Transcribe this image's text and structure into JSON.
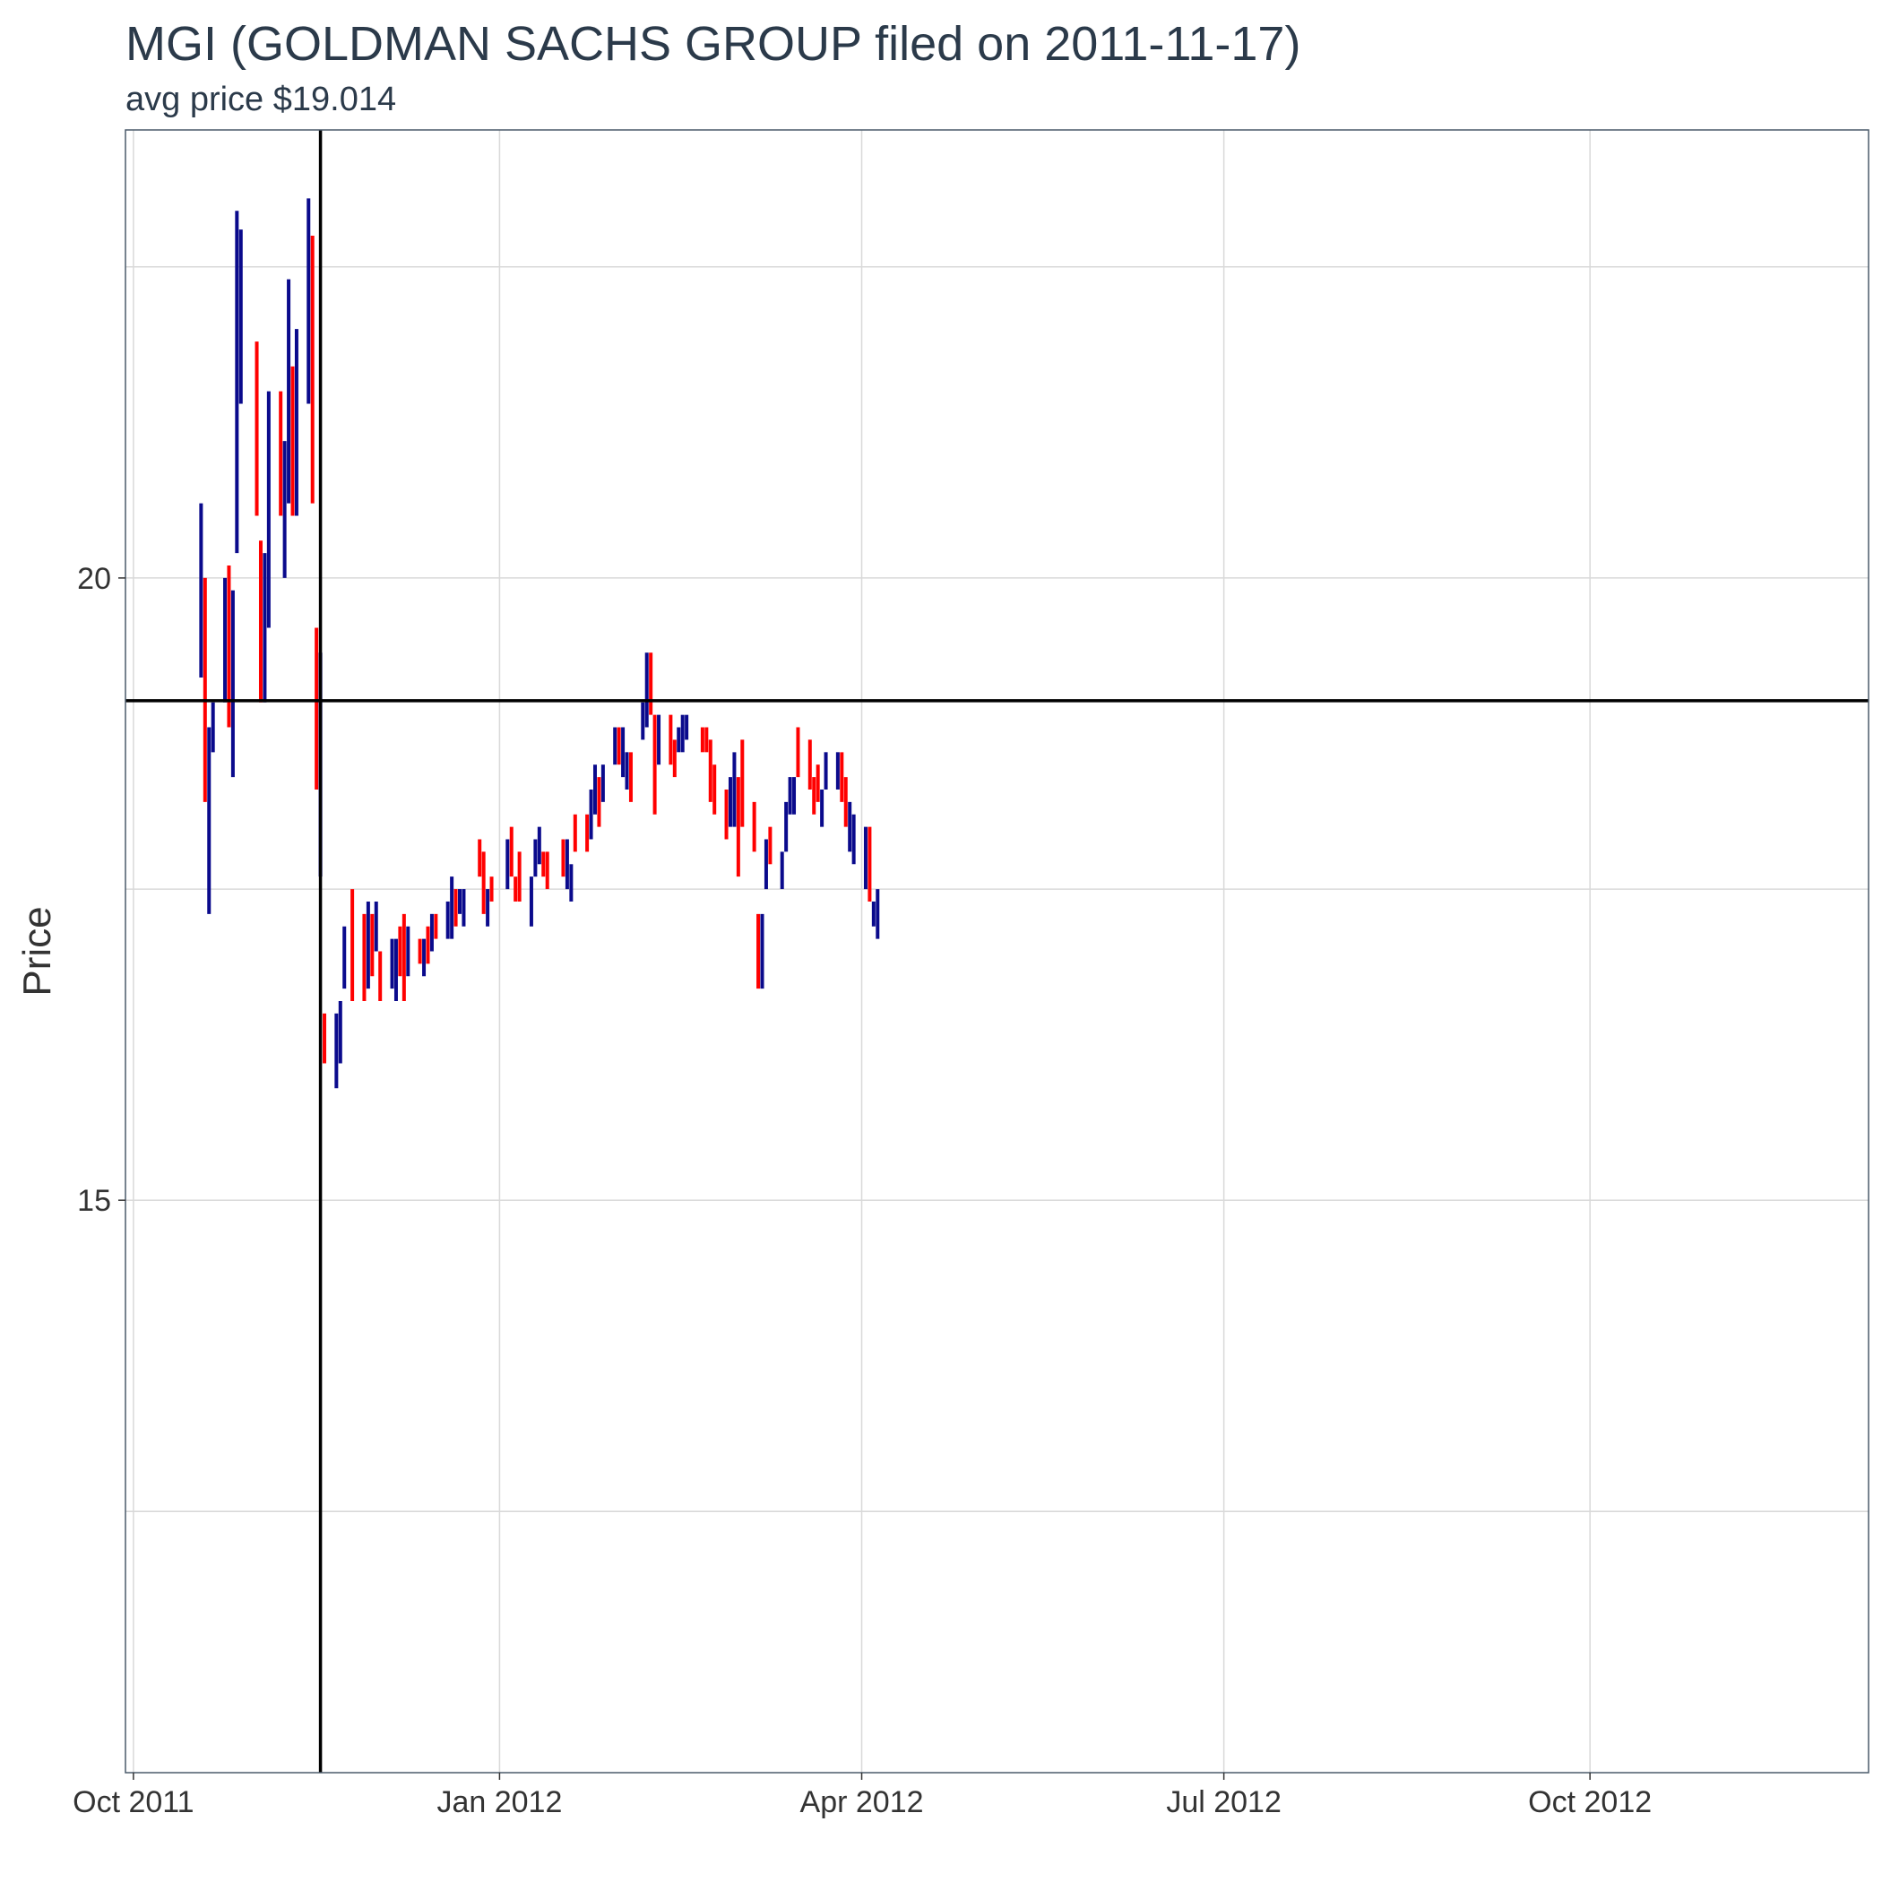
{
  "chart_data": {
    "type": "bar",
    "subtype": "ohlc",
    "title": "MGI (GOLDMAN SACHS GROUP filed on 2011-11-17)",
    "subtitle": "avg price $19.014",
    "xlabel": "",
    "ylabel": "Price",
    "x_range": [
      "2011-09-29",
      "2012-12-10"
    ],
    "ylim": [
      10.4,
      23.6
    ],
    "y_ticks": [
      15,
      20
    ],
    "y_minor_gridlines": [
      12.5,
      17.5,
      22.5
    ],
    "x_ticks": [
      {
        "date": "2011-10-01",
        "label": "Oct 2011"
      },
      {
        "date": "2012-01-01",
        "label": "Jan 2012"
      },
      {
        "date": "2012-04-01",
        "label": "Apr 2012"
      },
      {
        "date": "2012-07-01",
        "label": "Jul 2012"
      },
      {
        "date": "2012-10-01",
        "label": "Oct 2012"
      }
    ],
    "grid": true,
    "reference_lines": {
      "vertical_date": "2011-11-17",
      "horizontal_value": 19.014
    },
    "colors": {
      "up": "#0a0a8c",
      "down": "#ff0000",
      "reference": "#000000",
      "grid": "#d9d9d9",
      "border": "#4a5a6a"
    },
    "series": [
      {
        "date": "2011-10-18",
        "low": 19.2,
        "high": 20.6,
        "dir": "up"
      },
      {
        "date": "2011-10-19",
        "low": 18.2,
        "high": 20.0,
        "dir": "down"
      },
      {
        "date": "2011-10-20",
        "low": 17.3,
        "high": 18.8,
        "dir": "up"
      },
      {
        "date": "2011-10-21",
        "low": 18.6,
        "high": 19.0,
        "dir": "up"
      },
      {
        "date": "2011-10-24",
        "low": 19.0,
        "high": 20.0,
        "dir": "up"
      },
      {
        "date": "2011-10-25",
        "low": 18.8,
        "high": 20.1,
        "dir": "down"
      },
      {
        "date": "2011-10-26",
        "low": 18.4,
        "high": 19.9,
        "dir": "up"
      },
      {
        "date": "2011-10-27",
        "low": 20.2,
        "high": 22.95,
        "dir": "up"
      },
      {
        "date": "2011-10-28",
        "low": 21.4,
        "high": 22.8,
        "dir": "up"
      },
      {
        "date": "2011-11-01",
        "low": 20.5,
        "high": 21.9,
        "dir": "down"
      },
      {
        "date": "2011-11-02",
        "low": 19.0,
        "high": 20.3,
        "dir": "down"
      },
      {
        "date": "2011-11-03",
        "low": 19.0,
        "high": 20.2,
        "dir": "up"
      },
      {
        "date": "2011-11-04",
        "low": 19.6,
        "high": 21.5,
        "dir": "up"
      },
      {
        "date": "2011-11-07",
        "low": 20.5,
        "high": 21.5,
        "dir": "down"
      },
      {
        "date": "2011-11-08",
        "low": 20.0,
        "high": 21.1,
        "dir": "up"
      },
      {
        "date": "2011-11-09",
        "low": 20.6,
        "high": 22.4,
        "dir": "up"
      },
      {
        "date": "2011-11-10",
        "low": 20.5,
        "high": 21.7,
        "dir": "down"
      },
      {
        "date": "2011-11-11",
        "low": 20.5,
        "high": 22.0,
        "dir": "up"
      },
      {
        "date": "2011-11-14",
        "low": 21.4,
        "high": 23.05,
        "dir": "up"
      },
      {
        "date": "2011-11-15",
        "low": 20.6,
        "high": 22.75,
        "dir": "down"
      },
      {
        "date": "2011-11-16",
        "low": 18.3,
        "high": 19.6,
        "dir": "down"
      },
      {
        "date": "2011-11-17",
        "low": 17.6,
        "high": 19.4,
        "dir": "up"
      },
      {
        "date": "2011-11-18",
        "low": 16.1,
        "high": 16.5,
        "dir": "down"
      },
      {
        "date": "2011-11-21",
        "low": 15.9,
        "high": 16.5,
        "dir": "up"
      },
      {
        "date": "2011-11-22",
        "low": 16.1,
        "high": 16.6,
        "dir": "up"
      },
      {
        "date": "2011-11-23",
        "low": 16.7,
        "high": 17.2,
        "dir": "up"
      },
      {
        "date": "2011-11-25",
        "low": 16.6,
        "high": 17.5,
        "dir": "down"
      },
      {
        "date": "2011-11-28",
        "low": 16.6,
        "high": 17.3,
        "dir": "down"
      },
      {
        "date": "2011-11-29",
        "low": 16.7,
        "high": 17.4,
        "dir": "up"
      },
      {
        "date": "2011-11-30",
        "low": 16.8,
        "high": 17.3,
        "dir": "down"
      },
      {
        "date": "2011-12-01",
        "low": 17.0,
        "high": 17.4,
        "dir": "up"
      },
      {
        "date": "2011-12-02",
        "low": 16.6,
        "high": 17.0,
        "dir": "down"
      },
      {
        "date": "2011-12-05",
        "low": 16.7,
        "high": 17.1,
        "dir": "up"
      },
      {
        "date": "2011-12-06",
        "low": 16.6,
        "high": 17.1,
        "dir": "up"
      },
      {
        "date": "2011-12-07",
        "low": 16.8,
        "high": 17.2,
        "dir": "down"
      },
      {
        "date": "2011-12-08",
        "low": 16.6,
        "high": 17.3,
        "dir": "down"
      },
      {
        "date": "2011-12-09",
        "low": 16.8,
        "high": 17.2,
        "dir": "up"
      },
      {
        "date": "2011-12-12",
        "low": 16.9,
        "high": 17.1,
        "dir": "down"
      },
      {
        "date": "2011-12-13",
        "low": 16.8,
        "high": 17.1,
        "dir": "up"
      },
      {
        "date": "2011-12-14",
        "low": 16.9,
        "high": 17.2,
        "dir": "down"
      },
      {
        "date": "2011-12-15",
        "low": 17.0,
        "high": 17.3,
        "dir": "up"
      },
      {
        "date": "2011-12-16",
        "low": 17.1,
        "high": 17.3,
        "dir": "down"
      },
      {
        "date": "2011-12-19",
        "low": 17.1,
        "high": 17.4,
        "dir": "up"
      },
      {
        "date": "2011-12-20",
        "low": 17.1,
        "high": 17.6,
        "dir": "up"
      },
      {
        "date": "2011-12-21",
        "low": 17.2,
        "high": 17.5,
        "dir": "down"
      },
      {
        "date": "2011-12-22",
        "low": 17.3,
        "high": 17.5,
        "dir": "up"
      },
      {
        "date": "2011-12-23",
        "low": 17.2,
        "high": 17.5,
        "dir": "up"
      },
      {
        "date": "2011-12-27",
        "low": 17.6,
        "high": 17.9,
        "dir": "down"
      },
      {
        "date": "2011-12-28",
        "low": 17.3,
        "high": 17.8,
        "dir": "down"
      },
      {
        "date": "2011-12-29",
        "low": 17.2,
        "high": 17.5,
        "dir": "up"
      },
      {
        "date": "2011-12-30",
        "low": 17.4,
        "high": 17.6,
        "dir": "down"
      },
      {
        "date": "2012-01-03",
        "low": 17.5,
        "high": 17.9,
        "dir": "up"
      },
      {
        "date": "2012-01-04",
        "low": 17.6,
        "high": 18.0,
        "dir": "down"
      },
      {
        "date": "2012-01-05",
        "low": 17.4,
        "high": 17.6,
        "dir": "down"
      },
      {
        "date": "2012-01-06",
        "low": 17.4,
        "high": 17.8,
        "dir": "down"
      },
      {
        "date": "2012-01-09",
        "low": 17.2,
        "high": 17.6,
        "dir": "up"
      },
      {
        "date": "2012-01-10",
        "low": 17.6,
        "high": 17.9,
        "dir": "up"
      },
      {
        "date": "2012-01-11",
        "low": 17.7,
        "high": 18.0,
        "dir": "up"
      },
      {
        "date": "2012-01-12",
        "low": 17.6,
        "high": 17.8,
        "dir": "down"
      },
      {
        "date": "2012-01-13",
        "low": 17.5,
        "high": 17.8,
        "dir": "down"
      },
      {
        "date": "2012-01-17",
        "low": 17.6,
        "high": 17.9,
        "dir": "down"
      },
      {
        "date": "2012-01-18",
        "low": 17.5,
        "high": 17.9,
        "dir": "up"
      },
      {
        "date": "2012-01-19",
        "low": 17.4,
        "high": 17.7,
        "dir": "up"
      },
      {
        "date": "2012-01-20",
        "low": 17.8,
        "high": 18.1,
        "dir": "down"
      },
      {
        "date": "2012-01-23",
        "low": 17.8,
        "high": 18.1,
        "dir": "down"
      },
      {
        "date": "2012-01-24",
        "low": 17.9,
        "high": 18.3,
        "dir": "up"
      },
      {
        "date": "2012-01-25",
        "low": 18.1,
        "high": 18.5,
        "dir": "up"
      },
      {
        "date": "2012-01-26",
        "low": 18.0,
        "high": 18.4,
        "dir": "down"
      },
      {
        "date": "2012-01-27",
        "low": 18.2,
        "high": 18.5,
        "dir": "up"
      },
      {
        "date": "2012-01-30",
        "low": 18.5,
        "high": 18.8,
        "dir": "up"
      },
      {
        "date": "2012-01-31",
        "low": 18.5,
        "high": 18.8,
        "dir": "down"
      },
      {
        "date": "2012-02-01",
        "low": 18.4,
        "high": 18.8,
        "dir": "up"
      },
      {
        "date": "2012-02-02",
        "low": 18.3,
        "high": 18.6,
        "dir": "up"
      },
      {
        "date": "2012-02-03",
        "low": 18.2,
        "high": 18.6,
        "dir": "down"
      },
      {
        "date": "2012-02-06",
        "low": 18.7,
        "high": 19.0,
        "dir": "up"
      },
      {
        "date": "2012-02-07",
        "low": 18.8,
        "high": 19.4,
        "dir": "up"
      },
      {
        "date": "2012-02-08",
        "low": 18.9,
        "high": 19.4,
        "dir": "down"
      },
      {
        "date": "2012-02-09",
        "low": 18.1,
        "high": 18.9,
        "dir": "down"
      },
      {
        "date": "2012-02-10",
        "low": 18.5,
        "high": 18.9,
        "dir": "up"
      },
      {
        "date": "2012-02-13",
        "low": 18.5,
        "high": 18.9,
        "dir": "down"
      },
      {
        "date": "2012-02-14",
        "low": 18.4,
        "high": 18.7,
        "dir": "down"
      },
      {
        "date": "2012-02-15",
        "low": 18.6,
        "high": 18.8,
        "dir": "up"
      },
      {
        "date": "2012-02-16",
        "low": 18.6,
        "high": 18.9,
        "dir": "up"
      },
      {
        "date": "2012-02-17",
        "low": 18.7,
        "high": 18.9,
        "dir": "up"
      },
      {
        "date": "2012-02-21",
        "low": 18.6,
        "high": 18.8,
        "dir": "down"
      },
      {
        "date": "2012-02-22",
        "low": 18.6,
        "high": 18.8,
        "dir": "down"
      },
      {
        "date": "2012-02-23",
        "low": 18.2,
        "high": 18.7,
        "dir": "down"
      },
      {
        "date": "2012-02-24",
        "low": 18.1,
        "high": 18.5,
        "dir": "down"
      },
      {
        "date": "2012-02-27",
        "low": 17.9,
        "high": 18.3,
        "dir": "down"
      },
      {
        "date": "2012-02-28",
        "low": 18.0,
        "high": 18.4,
        "dir": "up"
      },
      {
        "date": "2012-02-29",
        "low": 18.0,
        "high": 18.6,
        "dir": "up"
      },
      {
        "date": "2012-03-01",
        "low": 17.6,
        "high": 18.4,
        "dir": "down"
      },
      {
        "date": "2012-03-02",
        "low": 18.0,
        "high": 18.7,
        "dir": "down"
      },
      {
        "date": "2012-03-05",
        "low": 17.8,
        "high": 18.2,
        "dir": "down"
      },
      {
        "date": "2012-03-06",
        "low": 16.7,
        "high": 17.3,
        "dir": "down"
      },
      {
        "date": "2012-03-07",
        "low": 16.7,
        "high": 17.3,
        "dir": "up"
      },
      {
        "date": "2012-03-08",
        "low": 17.5,
        "high": 17.9,
        "dir": "up"
      },
      {
        "date": "2012-03-09",
        "low": 17.7,
        "high": 18.0,
        "dir": "down"
      },
      {
        "date": "2012-03-12",
        "low": 17.5,
        "high": 17.8,
        "dir": "up"
      },
      {
        "date": "2012-03-13",
        "low": 17.8,
        "high": 18.2,
        "dir": "up"
      },
      {
        "date": "2012-03-14",
        "low": 18.1,
        "high": 18.4,
        "dir": "up"
      },
      {
        "date": "2012-03-15",
        "low": 18.1,
        "high": 18.4,
        "dir": "up"
      },
      {
        "date": "2012-03-16",
        "low": 18.4,
        "high": 18.8,
        "dir": "down"
      },
      {
        "date": "2012-03-19",
        "low": 18.3,
        "high": 18.7,
        "dir": "down"
      },
      {
        "date": "2012-03-20",
        "low": 18.1,
        "high": 18.4,
        "dir": "down"
      },
      {
        "date": "2012-03-21",
        "low": 18.2,
        "high": 18.5,
        "dir": "down"
      },
      {
        "date": "2012-03-22",
        "low": 18.0,
        "high": 18.3,
        "dir": "up"
      },
      {
        "date": "2012-03-23",
        "low": 18.3,
        "high": 18.6,
        "dir": "up"
      },
      {
        "date": "2012-03-26",
        "low": 18.3,
        "high": 18.6,
        "dir": "up"
      },
      {
        "date": "2012-03-27",
        "low": 18.2,
        "high": 18.6,
        "dir": "down"
      },
      {
        "date": "2012-03-28",
        "low": 18.0,
        "high": 18.4,
        "dir": "down"
      },
      {
        "date": "2012-03-29",
        "low": 17.8,
        "high": 18.2,
        "dir": "up"
      },
      {
        "date": "2012-03-30",
        "low": 17.7,
        "high": 18.1,
        "dir": "up"
      },
      {
        "date": "2012-04-02",
        "low": 17.5,
        "high": 18.0,
        "dir": "up"
      },
      {
        "date": "2012-04-03",
        "low": 17.4,
        "high": 18.0,
        "dir": "down"
      },
      {
        "date": "2012-04-04",
        "low": 17.2,
        "high": 17.4,
        "dir": "up"
      },
      {
        "date": "2012-04-05",
        "low": 17.1,
        "high": 17.5,
        "dir": "up"
      }
    ]
  }
}
